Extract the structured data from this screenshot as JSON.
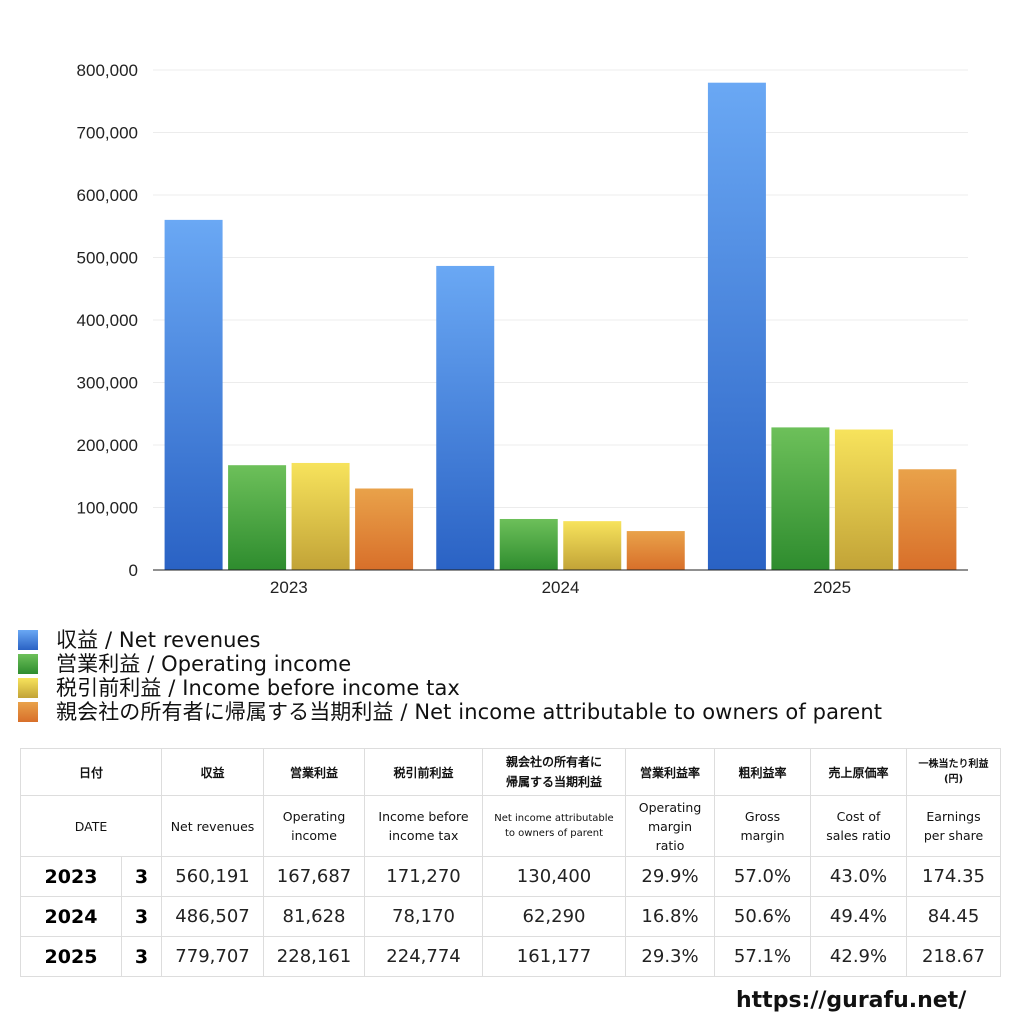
{
  "chart_data": {
    "type": "bar",
    "categories": [
      "2023",
      "2024",
      "2025"
    ],
    "series": [
      {
        "name": "収益 / Net revenues",
        "values": [
          560191,
          486507,
          779707
        ],
        "color_top": "#6aa8f4",
        "color_bottom": "#2a62c4"
      },
      {
        "name": "営業利益 / Operating income",
        "values": [
          167687,
          81628,
          228161
        ],
        "color_top": "#6dc05a",
        "color_bottom": "#2e8c2e"
      },
      {
        "name": "税引前利益 / Income before income tax",
        "values": [
          171270,
          78170,
          224774
        ],
        "color_top": "#f7e35c",
        "color_bottom": "#c2a337"
      },
      {
        "name": "親会社の所有者に帰属する当期利益 / Net income attributable to owners of parent",
        "values": [
          130400,
          62290,
          161177
        ],
        "color_top": "#e9a24a",
        "color_bottom": "#d86f2a"
      }
    ],
    "ylim": [
      0,
      800000
    ],
    "yticks": [
      0,
      100000,
      200000,
      300000,
      400000,
      500000,
      600000,
      700000,
      800000
    ],
    "ytick_labels": [
      "0",
      "100,000",
      "200,000",
      "300,000",
      "400,000",
      "500,000",
      "600,000",
      "700,000",
      "800,000"
    ],
    "grid": true,
    "legend_position": "bottom",
    "title": "",
    "xlabel": "",
    "ylabel": ""
  },
  "legend": [
    {
      "label": "収益 / Net revenues",
      "color": "#3f7fe0"
    },
    {
      "label": "営業利益 / Operating income",
      "color": "#45a23e"
    },
    {
      "label": "税引前利益 / Income before income tax",
      "color": "#e0c748"
    },
    {
      "label": "親会社の所有者に帰属する当期利益 / Net income attributable to owners of parent",
      "color": "#e07e33"
    }
  ],
  "table": {
    "header_jp": {
      "date": "日付",
      "revenues": "収益",
      "operating_income": "営業利益",
      "income_before_tax": "税引前利益",
      "net_income_line1": "親会社の所有者に",
      "net_income_line2": "帰属する当期利益",
      "operating_margin": "営業利益率",
      "gross_margin": "粗利益率",
      "cost_ratio": "売上原価率",
      "eps_line1": "一株当たり利益",
      "eps_line2": "(円)"
    },
    "header_en": {
      "date": "DATE",
      "revenues": "Net revenues",
      "operating_income_line1": "Operating",
      "operating_income_line2": "income",
      "income_before_tax_line1": "Income before",
      "income_before_tax_line2": "income tax",
      "net_income_line1": "Net income attributable",
      "net_income_line2": "to owners of parent",
      "operating_margin_line1": "Operating",
      "operating_margin_line2": "margin",
      "operating_margin_line3": "ratio",
      "gross_margin_line1": "Gross",
      "gross_margin_line2": "margin",
      "cost_ratio_line1": "Cost of",
      "cost_ratio_line2": "sales ratio",
      "eps_line1": "Earnings",
      "eps_line2": "per share"
    },
    "rows": [
      {
        "year": "2023",
        "month": "3",
        "revenues": "560,191",
        "operating_income": "167,687",
        "income_before_tax": "171,270",
        "net_income": "130,400",
        "operating_margin": "29.9%",
        "gross_margin": "57.0%",
        "cost_ratio": "43.0%",
        "eps": "174.35"
      },
      {
        "year": "2024",
        "month": "3",
        "revenues": "486,507",
        "operating_income": "81,628",
        "income_before_tax": "78,170",
        "net_income": "62,290",
        "operating_margin": "16.8%",
        "gross_margin": "50.6%",
        "cost_ratio": "49.4%",
        "eps": "84.45"
      },
      {
        "year": "2025",
        "month": "3",
        "revenues": "779,707",
        "operating_income": "228,161",
        "income_before_tax": "224,774",
        "net_income": "161,177",
        "operating_margin": "29.3%",
        "gross_margin": "57.1%",
        "cost_ratio": "42.9%",
        "eps": "218.67"
      }
    ]
  },
  "footer": {
    "url": "https://gurafu.net/"
  }
}
